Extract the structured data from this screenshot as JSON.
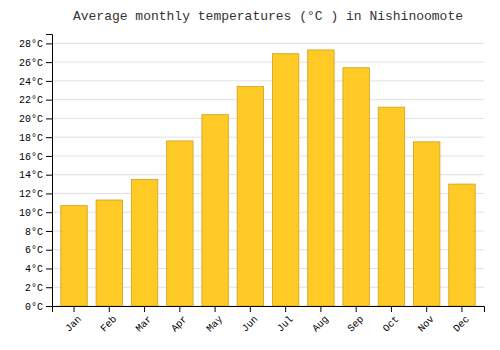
{
  "chart_data": {
    "type": "bar",
    "title": "Average monthly temperatures (°C ) in Nishinoomote",
    "categories": [
      "Jan",
      "Feb",
      "Mar",
      "Apr",
      "May",
      "Jun",
      "Jul",
      "Aug",
      "Sep",
      "Oct",
      "Nov",
      "Dec"
    ],
    "values": [
      10.7,
      11.3,
      13.5,
      17.6,
      20.4,
      23.4,
      26.9,
      27.3,
      25.4,
      21.2,
      17.5,
      13.0
    ],
    "color": "#FFC926",
    "ylim": [
      0,
      29
    ],
    "yticks": [
      {
        "value": 0,
        "label": "0°C"
      },
      {
        "value": 2,
        "label": "2°C"
      },
      {
        "value": 4,
        "label": "4°C"
      },
      {
        "value": 6,
        "label": "6°C"
      },
      {
        "value": 8,
        "label": "8°C"
      },
      {
        "value": 10,
        "label": "10°C"
      },
      {
        "value": 12,
        "label": "12°C"
      },
      {
        "value": 14,
        "label": "14°C"
      },
      {
        "value": 16,
        "label": "16°C"
      },
      {
        "value": 18,
        "label": "18°C"
      },
      {
        "value": 20,
        "label": "20°C"
      },
      {
        "value": 22,
        "label": "22°C"
      },
      {
        "value": 24,
        "label": "24°C"
      },
      {
        "value": 26,
        "label": "26°C"
      },
      {
        "value": 28,
        "label": "28°C"
      }
    ],
    "grid": true
  }
}
